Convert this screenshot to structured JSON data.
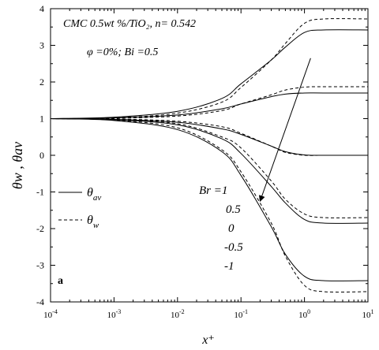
{
  "chart_data": {
    "type": "line",
    "panel_label": "a",
    "annotation_line1": "CMC 0.5wt %/TiO₂, n= 0.542",
    "annotation_line2": "φ =0%; Bi =0.5",
    "ylabel": "θw , θav",
    "xlabel": "x⁺",
    "x_scale": "log",
    "xlim": [
      0.0001,
      10
    ],
    "ylim": [
      -4,
      4
    ],
    "x_ticks": [
      {
        "value": 0.0001,
        "base": "10",
        "exp": "-4"
      },
      {
        "value": 0.001,
        "base": "10",
        "exp": "-3"
      },
      {
        "value": 0.01,
        "base": "10",
        "exp": "-2"
      },
      {
        "value": 0.1,
        "base": "10",
        "exp": "-1"
      },
      {
        "value": 1,
        "base": "10",
        "exp": "0"
      },
      {
        "value": 10,
        "base": "10",
        "exp": "1"
      }
    ],
    "y_ticks": [
      "-4",
      "-3",
      "-2",
      "-1",
      "0",
      "1",
      "2",
      "3",
      "4"
    ],
    "legend": {
      "placement": "left-middle",
      "entries": [
        {
          "style": "solid",
          "symbol": "θ",
          "sub": "av"
        },
        {
          "style": "dashed",
          "symbol": "θ",
          "sub": "w"
        }
      ]
    },
    "br_title": "Br =1",
    "br_labels": [
      "0.5",
      "0",
      "-0.5",
      "-1"
    ],
    "series_values_Br": [
      1,
      0.5,
      0,
      -0.5,
      -1
    ],
    "series": [
      {
        "style": "solid",
        "Br": 1,
        "x": [
          0.0001,
          0.001,
          0.01,
          0.05,
          0.1,
          0.3,
          0.5,
          1,
          2,
          10
        ],
        "y": [
          1,
          1.04,
          1.2,
          1.55,
          1.95,
          2.6,
          2.95,
          3.35,
          3.42,
          3.42
        ]
      },
      {
        "style": "dashed",
        "Br": 1,
        "x": [
          0.0001,
          0.001,
          0.01,
          0.05,
          0.1,
          0.3,
          0.5,
          1,
          2,
          10
        ],
        "y": [
          1,
          1.02,
          1.15,
          1.45,
          1.85,
          2.6,
          3.05,
          3.6,
          3.72,
          3.72
        ]
      },
      {
        "style": "solid",
        "Br": 0.5,
        "x": [
          0.0001,
          0.001,
          0.01,
          0.05,
          0.1,
          0.3,
          0.5,
          1,
          2,
          10
        ],
        "y": [
          1,
          1.02,
          1.1,
          1.27,
          1.4,
          1.6,
          1.67,
          1.7,
          1.7,
          1.7
        ]
      },
      {
        "style": "dashed",
        "Br": 0.5,
        "x": [
          0.0001,
          0.001,
          0.01,
          0.05,
          0.1,
          0.3,
          0.5,
          1,
          2,
          10
        ],
        "y": [
          1,
          1.01,
          1.07,
          1.22,
          1.4,
          1.65,
          1.78,
          1.86,
          1.87,
          1.87
        ]
      },
      {
        "style": "solid",
        "Br": 0,
        "x": [
          0.0001,
          0.001,
          0.01,
          0.05,
          0.1,
          0.3,
          0.5,
          1,
          2,
          10
        ],
        "y": [
          1,
          0.98,
          0.9,
          0.72,
          0.57,
          0.25,
          0.1,
          0.01,
          0,
          0
        ]
      },
      {
        "style": "dashed",
        "Br": 0,
        "x": [
          0.0001,
          0.001,
          0.01,
          0.05,
          0.1,
          0.3,
          0.5,
          1,
          2,
          10
        ],
        "y": [
          1,
          0.99,
          0.93,
          0.78,
          0.6,
          0.25,
          0.08,
          0,
          0,
          0
        ]
      },
      {
        "style": "solid",
        "Br": -0.5,
        "x": [
          0.0001,
          0.001,
          0.01,
          0.05,
          0.1,
          0.3,
          0.5,
          1,
          2,
          10
        ],
        "y": [
          1,
          0.97,
          0.83,
          0.45,
          0.05,
          -0.85,
          -1.3,
          -1.75,
          -1.85,
          -1.85
        ]
      },
      {
        "style": "dashed",
        "Br": -0.5,
        "x": [
          0.0001,
          0.001,
          0.01,
          0.05,
          0.1,
          0.3,
          0.5,
          1,
          2,
          10
        ],
        "y": [
          1,
          0.98,
          0.86,
          0.5,
          0.2,
          -0.7,
          -1.2,
          -1.6,
          -1.7,
          -1.7
        ]
      },
      {
        "style": "solid",
        "Br": -1,
        "x": [
          0.0001,
          0.001,
          0.01,
          0.05,
          0.1,
          0.3,
          0.5,
          1,
          2,
          10
        ],
        "y": [
          1,
          0.95,
          0.7,
          0.1,
          -0.55,
          -1.95,
          -2.7,
          -3.3,
          -3.42,
          -3.42
        ]
      },
      {
        "style": "dashed",
        "Br": -1,
        "x": [
          0.0001,
          0.001,
          0.01,
          0.05,
          0.1,
          0.3,
          0.5,
          1,
          2,
          10
        ],
        "y": [
          1,
          0.96,
          0.75,
          0.15,
          -0.45,
          -1.85,
          -2.75,
          -3.55,
          -3.72,
          -3.72
        ]
      }
    ],
    "arrow": {
      "from": {
        "x": 1.25,
        "y": 2.65
      },
      "to": {
        "x": 0.2,
        "y": -1.25
      }
    }
  }
}
